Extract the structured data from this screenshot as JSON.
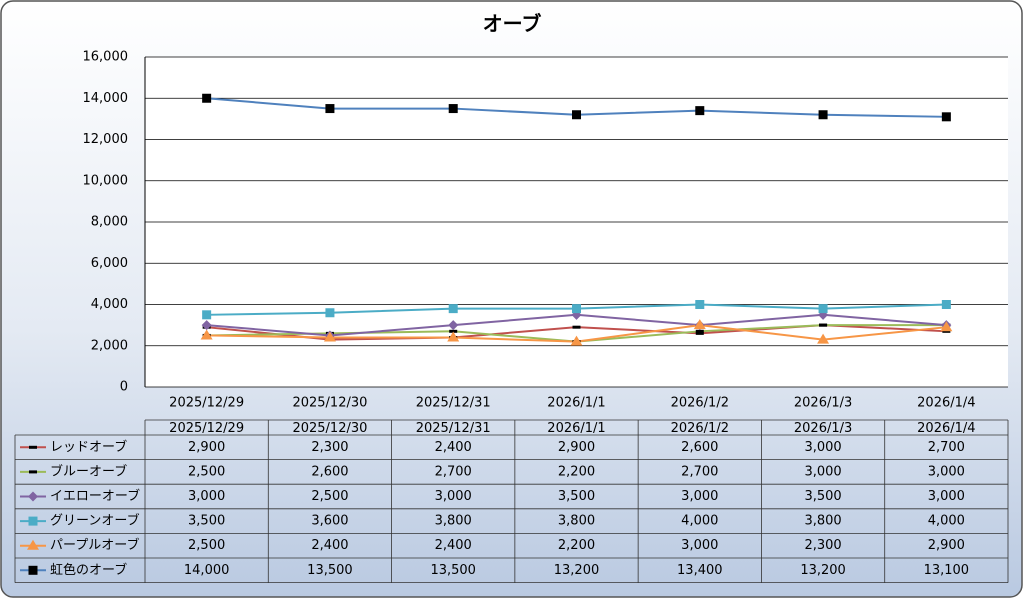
{
  "chart_data": {
    "type": "line",
    "title": "オーブ",
    "categories": [
      "2025/12/29",
      "2025/12/30",
      "2025/12/31",
      "2026/1/1",
      "2026/1/2",
      "2026/1/3",
      "2026/1/4"
    ],
    "ylim": [
      0,
      16000
    ],
    "yticks": [
      0,
      {
        "value": 2000,
        "label": "2,000"
      },
      {
        "value": 4000,
        "label": "4,000"
      },
      {
        "value": 6000,
        "label": "6,000"
      },
      {
        "value": 8000,
        "label": "8,000"
      },
      {
        "value": 10000,
        "label": "10,000"
      },
      {
        "value": 12000,
        "label": "12,000"
      },
      {
        "value": 14000,
        "label": "14,000"
      },
      {
        "value": 16000,
        "label": "16,000"
      }
    ],
    "grid": true,
    "data_table": true,
    "series": [
      {
        "name": "レッドオーブ",
        "color": "#c0504d",
        "marker": "dash",
        "marker_color": "#000000",
        "values": [
          2900,
          2300,
          2400,
          2900,
          2600,
          3000,
          2700
        ],
        "value_labels": [
          "2,900",
          "2,300",
          "2,400",
          "2,900",
          "2,600",
          "3,000",
          "2,700"
        ]
      },
      {
        "name": "ブルーオーブ",
        "color": "#9bbb59",
        "marker": "dash",
        "marker_color": "#000000",
        "values": [
          2500,
          2600,
          2700,
          2200,
          2700,
          3000,
          3000
        ],
        "value_labels": [
          "2,500",
          "2,600",
          "2,700",
          "2,200",
          "2,700",
          "3,000",
          "3,000"
        ]
      },
      {
        "name": "イエローオーブ",
        "color": "#8064a2",
        "marker": "diamond",
        "marker_color": "#8064a2",
        "values": [
          3000,
          2500,
          3000,
          3500,
          3000,
          3500,
          3000
        ],
        "value_labels": [
          "3,000",
          "2,500",
          "3,000",
          "3,500",
          "3,000",
          "3,500",
          "3,000"
        ]
      },
      {
        "name": "グリーンオーブ",
        "color": "#4bacc6",
        "marker": "square",
        "marker_color": "#4bacc6",
        "values": [
          3500,
          3600,
          3800,
          3800,
          4000,
          3800,
          4000
        ],
        "value_labels": [
          "3,500",
          "3,600",
          "3,800",
          "3,800",
          "4,000",
          "3,800",
          "4,000"
        ]
      },
      {
        "name": "パープルオーブ",
        "color": "#f79646",
        "marker": "triangle",
        "marker_color": "#f79646",
        "values": [
          2500,
          2400,
          2400,
          2200,
          3000,
          2300,
          2900
        ],
        "value_labels": [
          "2,500",
          "2,400",
          "2,400",
          "2,200",
          "3,000",
          "2,300",
          "2,900"
        ]
      },
      {
        "name": "虹色のオーブ",
        "color": "#4f81bd",
        "marker": "square",
        "marker_color": "#000000",
        "values": [
          14000,
          13500,
          13500,
          13200,
          13400,
          13200,
          13100
        ],
        "value_labels": [
          "14,000",
          "13,500",
          "13,500",
          "13,200",
          "13,400",
          "13,200",
          "13,100"
        ]
      }
    ]
  }
}
